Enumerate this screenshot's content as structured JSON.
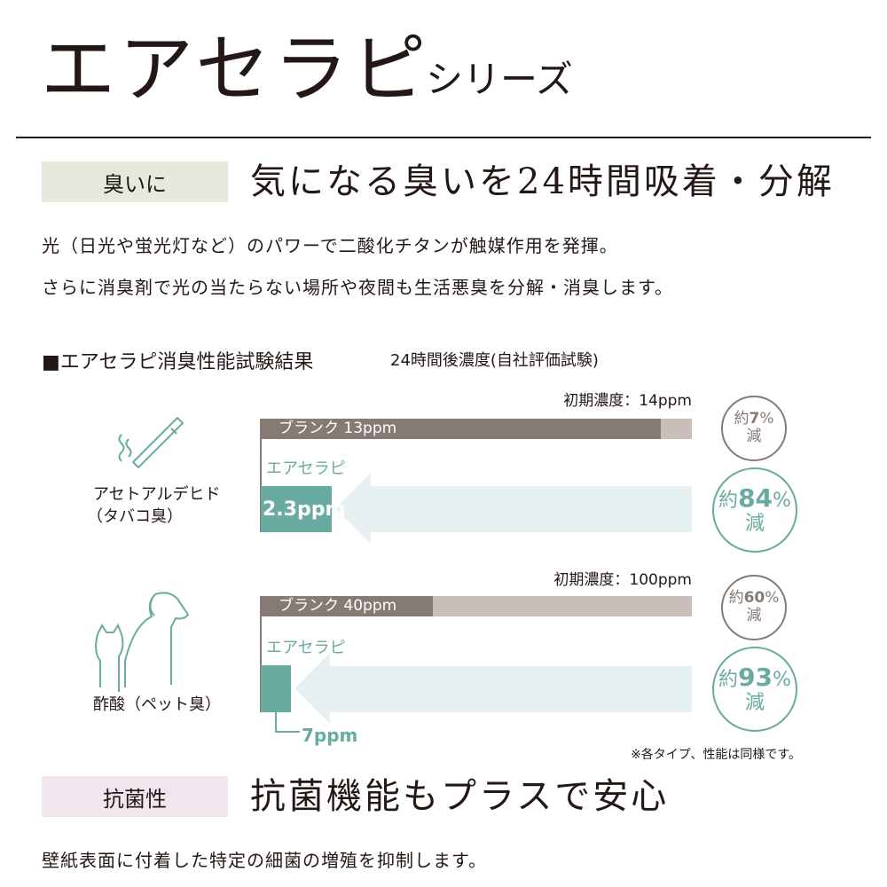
{
  "header": {
    "title": "エアセラピ",
    "subtitle": "シリーズ"
  },
  "odor": {
    "tag": "臭いに",
    "headline": "気になる臭いを24時間吸着・分解",
    "body": [
      "光（日光や蛍光灯など）のパワーで二酸化チタンが触媒作用を発揮。",
      "さらに消臭剤で光の当たらない場所や夜間も生活悪臭を分解・消臭します。"
    ]
  },
  "test": {
    "heading": "■エアセラピ消臭性能試験結果",
    "subheading": "24時間後濃度(自社評価試験)",
    "items": [
      {
        "name": "アセトアルデヒド",
        "name_sub": "（タバコ臭）",
        "icon": "cigarette-icon",
        "initial": "初期濃度：14ppm",
        "blank_label": "ブランク 13ppm",
        "product_label": "エアセラピ",
        "product_value": "2.3ppm",
        "blank_reduction_prefix": "約",
        "blank_reduction": "7",
        "blank_reduction_suffix": "%",
        "reduction_word": "減",
        "product_reduction": "84"
      },
      {
        "name": "酢酸",
        "name_sub": "（ペット臭）",
        "icon": "dog-cat-icon",
        "initial": "初期濃度：100ppm",
        "blank_label": "ブランク 40ppm",
        "product_label": "エアセラピ",
        "product_value": "7ppm",
        "blank_reduction_prefix": "約",
        "blank_reduction": "60",
        "blank_reduction_suffix": "%",
        "reduction_word": "減",
        "product_reduction": "93"
      }
    ],
    "note": "※各タイプ、性能は同様です。"
  },
  "antibacterial": {
    "tag": "抗菌性",
    "headline": "抗菌機能もプラスで安心",
    "body": "壁紙表面に付着した特定の細菌の増殖を抑制します。"
  },
  "colors": {
    "blank": "#867a74",
    "blank_track": "#c9beb9",
    "product": "#6aaba1",
    "arrow": "#e8f1f2",
    "tag_odor": "#e6eadd",
    "tag_antibacterial": "#efe6ee"
  },
  "chart_data": [
    {
      "type": "bar",
      "title": "アセトアルデヒド",
      "unit": "ppm",
      "initial": 14,
      "categories": [
        "ブランク",
        "エアセラピ"
      ],
      "values": [
        13,
        2.3
      ],
      "reduction_percent": [
        7,
        84
      ]
    },
    {
      "type": "bar",
      "title": "酢酸",
      "unit": "ppm",
      "initial": 100,
      "categories": [
        "ブランク",
        "エアセラピ"
      ],
      "values": [
        40,
        7
      ],
      "reduction_percent": [
        60,
        93
      ]
    }
  ]
}
